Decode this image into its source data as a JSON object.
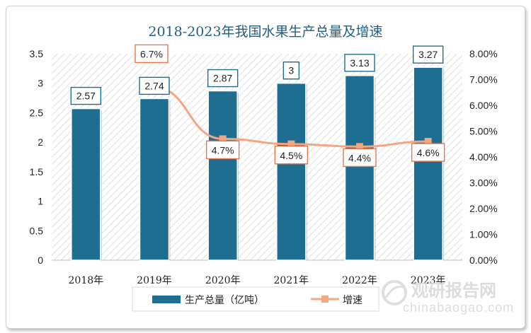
{
  "chart_data": {
    "type": "bar+line",
    "title": "2018-2023年我国水果生产总量及增速",
    "categories": [
      "2018年",
      "2019年",
      "2020年",
      "2021年",
      "2022年",
      "2023年"
    ],
    "bar_series": {
      "name": "生产总量（亿吨）",
      "values": [
        2.57,
        2.74,
        2.87,
        3,
        3.13,
        3.27
      ],
      "labels": [
        "2.57",
        "2.74",
        "2.87",
        "3",
        "3.13",
        "3.27"
      ],
      "color": "#1e6e91"
    },
    "line_series": {
      "name": "增速",
      "values": [
        null,
        6.7,
        4.7,
        4.5,
        4.4,
        4.6
      ],
      "labels": [
        "",
        "6.7%",
        "4.7%",
        "4.5%",
        "4.4%",
        "4.6%"
      ],
      "color": "#f4a582",
      "label_border": "#e8784c"
    },
    "y_left": {
      "min": 0,
      "max": 3.5,
      "step": 0.5,
      "ticks": [
        "0",
        "0.5",
        "1",
        "1.5",
        "2",
        "2.5",
        "3",
        "3.5"
      ]
    },
    "y_right": {
      "min": 0,
      "max": 8,
      "step": 1,
      "ticks": [
        "0.00%",
        "1.00%",
        "2.00%",
        "3.00%",
        "4.00%",
        "5.00%",
        "6.00%",
        "7.00%",
        "8.00%"
      ]
    },
    "legend": {
      "placement": "bottom"
    }
  },
  "watermark": {
    "line1": "观研报告网",
    "line2": "chinabaogao.com"
  }
}
